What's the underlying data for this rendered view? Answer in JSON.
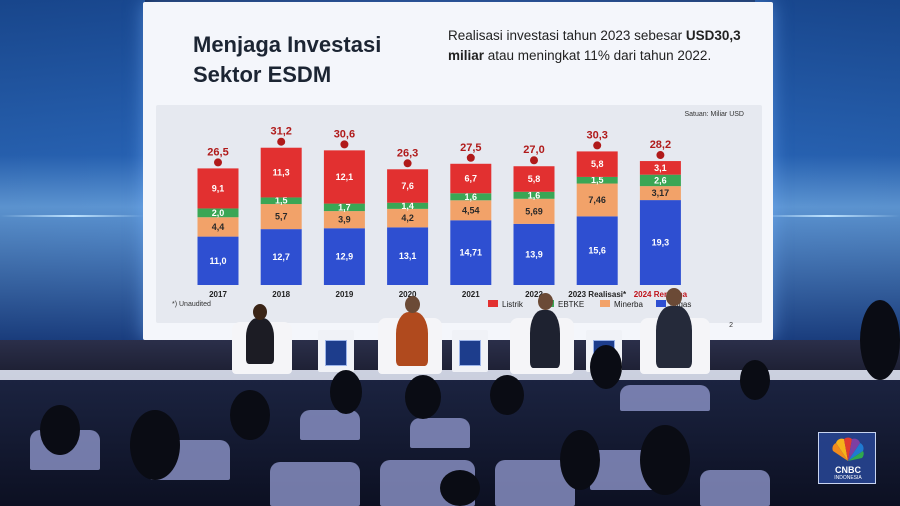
{
  "slide": {
    "title_line1": "Menjaga Investasi",
    "title_line2": "Sektor ESDM",
    "note_pre": "Realisasi investasi tahun 2023 sebesar ",
    "note_bold": "USD30,3 miliar",
    "note_post": " atau meningkat 11% dari tahun 2022.",
    "unit": "Satuan: Miliar USD",
    "footnote": "*) Unaudited",
    "page_number": "2"
  },
  "colors": {
    "listrik": "#e23030",
    "ebtke": "#3aa655",
    "minerba": "#f2a269",
    "migas": "#2e4fd1"
  },
  "chart_data": {
    "type": "bar",
    "stacked": true,
    "categories": [
      "2017",
      "2018",
      "2019",
      "2020",
      "2021",
      "2022",
      "2023 Realisasi*",
      "2024 Rencana"
    ],
    "totals": [
      "26,5",
      "31,2",
      "30,6",
      "26,3",
      "27,5",
      "27,0",
      "30,3",
      "28,2"
    ],
    "series": [
      {
        "name": "Migas",
        "values": [
          11.0,
          12.7,
          12.9,
          13.1,
          14.71,
          13.9,
          15.6,
          19.3
        ],
        "labels": [
          "11,0",
          "12,7",
          "12,9",
          "13,1",
          "14,71",
          "13,9",
          "15,6",
          "19,3"
        ]
      },
      {
        "name": "Minerba",
        "values": [
          4.4,
          5.7,
          3.9,
          4.2,
          4.54,
          5.69,
          7.46,
          3.17
        ],
        "labels": [
          "4,4",
          "5,7",
          "3,9",
          "4,2",
          "4,54",
          "5,69",
          "7,46",
          "3,17"
        ]
      },
      {
        "name": "EBTKE",
        "values": [
          2.0,
          1.5,
          1.7,
          1.4,
          1.6,
          1.6,
          1.5,
          2.6
        ],
        "labels": [
          "2,0",
          "1,5",
          "1,7",
          "1,4",
          "1,6",
          "1,6",
          "1,5",
          "2,6"
        ]
      },
      {
        "name": "Listrik",
        "values": [
          9.1,
          11.3,
          12.1,
          7.6,
          6.7,
          5.8,
          5.8,
          3.1
        ],
        "labels": [
          "9,1",
          "11,3",
          "12,1",
          "7,6",
          "6,7",
          "5,8",
          "5,8",
          "3,1"
        ]
      }
    ],
    "legend_labels": [
      "Listrik",
      "EBTKE",
      "Minerba",
      "Migas"
    ],
    "legend_position": "bottom"
  },
  "logo": {
    "name": "CNBC",
    "sub": "INDONESIA"
  }
}
